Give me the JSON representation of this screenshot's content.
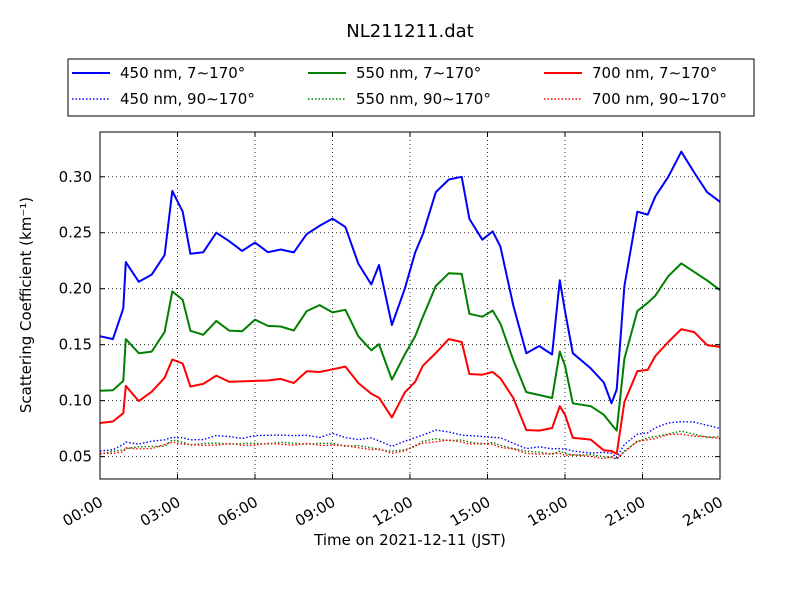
{
  "chart_data": {
    "type": "line",
    "title": "NL211211.dat",
    "xlabel": "Time on 2021-12-11 (JST)",
    "ylabel": "Scattering Coefficient (km⁻¹)",
    "xlim": [
      0,
      24
    ],
    "ylim": [
      0.03,
      0.34
    ],
    "x_ticks": [
      "00:00",
      "03:00",
      "06:00",
      "09:00",
      "12:00",
      "15:00",
      "18:00",
      "21:00",
      "24:00"
    ],
    "y_ticks": [
      "0.05",
      "0.10",
      "0.15",
      "0.20",
      "0.25",
      "0.30"
    ],
    "grid": true,
    "legend_position": "top-center",
    "x_unit": "hour of day",
    "x": [
      0.0,
      0.5,
      0.9,
      1.0,
      1.5,
      2.0,
      2.5,
      2.8,
      3.2,
      3.5,
      4.0,
      4.5,
      5.0,
      5.5,
      6.0,
      6.5,
      7.0,
      7.5,
      8.0,
      8.5,
      9.0,
      9.5,
      10.0,
      10.5,
      10.8,
      11.3,
      11.8,
      12.2,
      12.5,
      13.0,
      13.5,
      14.0,
      14.3,
      14.8,
      15.2,
      15.5,
      16.0,
      16.5,
      17.0,
      17.5,
      17.8,
      18.0,
      18.3,
      19.0,
      19.5,
      19.8,
      20.0,
      20.3,
      20.8,
      21.2,
      21.5,
      22.0,
      22.5,
      23.0,
      23.5,
      24.0
    ],
    "series": [
      {
        "name": "450 nm, 7∼170°",
        "color": "#0000ff",
        "style": "solid",
        "values": [
          0.16,
          0.155,
          0.18,
          0.225,
          0.205,
          0.215,
          0.23,
          0.285,
          0.27,
          0.23,
          0.235,
          0.25,
          0.24,
          0.235,
          0.24,
          0.235,
          0.235,
          0.23,
          0.25,
          0.255,
          0.265,
          0.255,
          0.22,
          0.205,
          0.22,
          0.17,
          0.2,
          0.23,
          0.25,
          0.285,
          0.3,
          0.3,
          0.26,
          0.245,
          0.25,
          0.24,
          0.185,
          0.14,
          0.15,
          0.14,
          0.21,
          0.18,
          0.14,
          0.13,
          0.115,
          0.1,
          0.11,
          0.2,
          0.27,
          0.265,
          0.285,
          0.3,
          0.32,
          0.305,
          0.285,
          0.28
        ]
      },
      {
        "name": "450 nm, 90∼170°",
        "color": "#0000ff",
        "style": "dotted",
        "values": [
          0.055,
          0.057,
          0.06,
          0.063,
          0.062,
          0.063,
          0.065,
          0.068,
          0.066,
          0.065,
          0.066,
          0.068,
          0.068,
          0.067,
          0.068,
          0.069,
          0.07,
          0.068,
          0.069,
          0.068,
          0.07,
          0.067,
          0.066,
          0.066,
          0.064,
          0.06,
          0.063,
          0.067,
          0.07,
          0.073,
          0.072,
          0.07,
          0.068,
          0.068,
          0.068,
          0.066,
          0.062,
          0.058,
          0.058,
          0.057,
          0.058,
          0.056,
          0.055,
          0.054,
          0.053,
          0.053,
          0.05,
          0.06,
          0.07,
          0.072,
          0.075,
          0.08,
          0.082,
          0.08,
          0.078,
          0.076
        ]
      },
      {
        "name": "550 nm, 7∼170°",
        "color": "#008000",
        "style": "solid",
        "values": [
          0.11,
          0.108,
          0.12,
          0.155,
          0.14,
          0.145,
          0.16,
          0.2,
          0.19,
          0.16,
          0.16,
          0.17,
          0.165,
          0.162,
          0.17,
          0.168,
          0.165,
          0.165,
          0.18,
          0.183,
          0.18,
          0.18,
          0.16,
          0.145,
          0.148,
          0.12,
          0.14,
          0.16,
          0.175,
          0.2,
          0.215,
          0.212,
          0.18,
          0.175,
          0.178,
          0.17,
          0.135,
          0.11,
          0.105,
          0.1,
          0.145,
          0.13,
          0.1,
          0.095,
          0.085,
          0.08,
          0.072,
          0.14,
          0.18,
          0.185,
          0.195,
          0.21,
          0.225,
          0.215,
          0.205,
          0.2
        ]
      },
      {
        "name": "550 nm, 90∼170°",
        "color": "#008000",
        "style": "dotted",
        "values": [
          0.053,
          0.054,
          0.056,
          0.058,
          0.058,
          0.059,
          0.06,
          0.064,
          0.063,
          0.061,
          0.061,
          0.062,
          0.062,
          0.061,
          0.062,
          0.062,
          0.062,
          0.062,
          0.062,
          0.061,
          0.062,
          0.06,
          0.059,
          0.058,
          0.057,
          0.054,
          0.056,
          0.06,
          0.063,
          0.066,
          0.065,
          0.064,
          0.063,
          0.062,
          0.062,
          0.06,
          0.058,
          0.054,
          0.054,
          0.053,
          0.054,
          0.053,
          0.052,
          0.051,
          0.05,
          0.05,
          0.047,
          0.055,
          0.064,
          0.066,
          0.068,
          0.071,
          0.072,
          0.07,
          0.068,
          0.067
        ]
      },
      {
        "name": "700 nm, 7∼170°",
        "color": "#ff0000",
        "style": "solid",
        "values": [
          0.08,
          0.079,
          0.09,
          0.112,
          0.102,
          0.108,
          0.118,
          0.138,
          0.132,
          0.115,
          0.115,
          0.12,
          0.118,
          0.116,
          0.12,
          0.118,
          0.117,
          0.117,
          0.125,
          0.128,
          0.128,
          0.128,
          0.117,
          0.105,
          0.105,
          0.085,
          0.105,
          0.118,
          0.13,
          0.145,
          0.155,
          0.15,
          0.125,
          0.122,
          0.128,
          0.12,
          0.1,
          0.075,
          0.072,
          0.078,
          0.095,
          0.085,
          0.068,
          0.064,
          0.058,
          0.055,
          0.05,
          0.1,
          0.125,
          0.13,
          0.14,
          0.15,
          0.165,
          0.16,
          0.152,
          0.148
        ]
      },
      {
        "name": "700 nm, 90∼170°",
        "color": "#ff0000",
        "style": "dotted",
        "values": [
          0.052,
          0.053,
          0.055,
          0.057,
          0.057,
          0.058,
          0.06,
          0.063,
          0.062,
          0.06,
          0.06,
          0.061,
          0.061,
          0.06,
          0.061,
          0.061,
          0.061,
          0.061,
          0.061,
          0.06,
          0.061,
          0.059,
          0.058,
          0.057,
          0.056,
          0.053,
          0.056,
          0.059,
          0.062,
          0.064,
          0.064,
          0.063,
          0.062,
          0.061,
          0.061,
          0.059,
          0.056,
          0.053,
          0.053,
          0.052,
          0.053,
          0.052,
          0.051,
          0.05,
          0.049,
          0.049,
          0.048,
          0.055,
          0.063,
          0.065,
          0.067,
          0.069,
          0.07,
          0.069,
          0.067,
          0.066
        ]
      }
    ]
  }
}
